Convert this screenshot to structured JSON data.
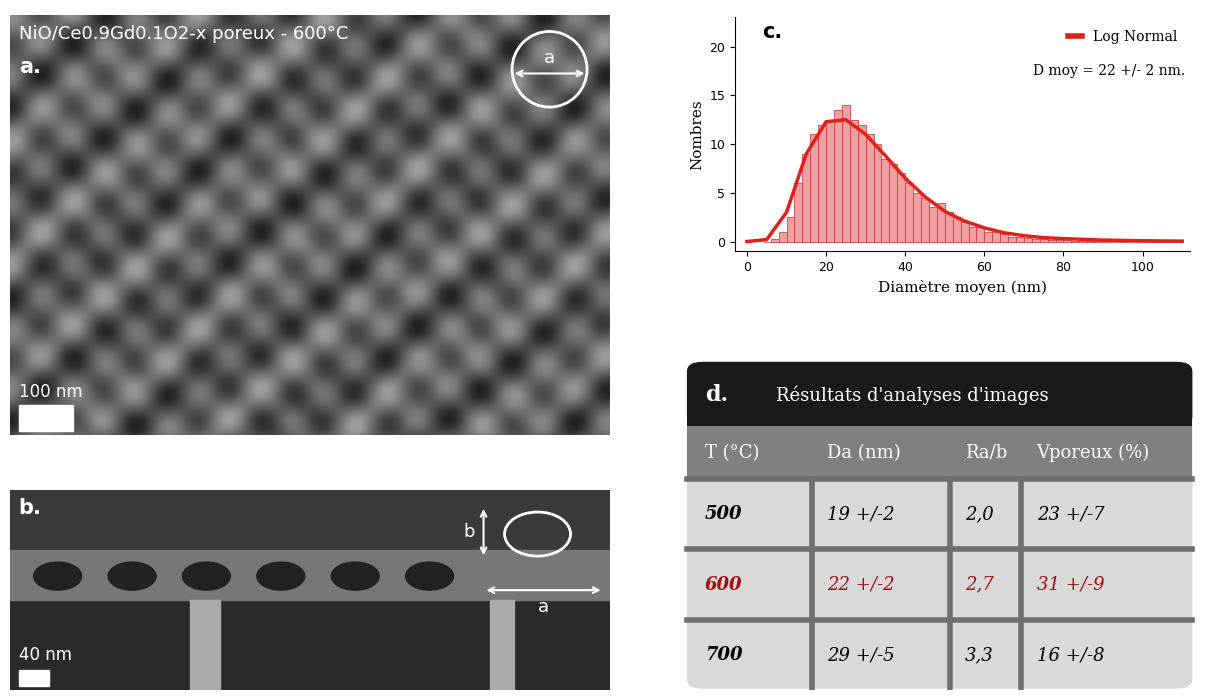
{
  "image_a": {
    "label": "a.",
    "title": "NiO/Ce0.9Gd0.1O2-x poreux - 600°C",
    "marker_label": "a",
    "scale_bar": "100 nm"
  },
  "image_b": {
    "label": "b.",
    "marker_labels": [
      "a",
      "b"
    ],
    "scale_bar": "40 nm"
  },
  "chart_data": {
    "type": "histogram",
    "label": "c.",
    "x_label": "Diamètre moyen (nm)",
    "y_label": "Nombres",
    "bins": [
      4,
      6,
      8,
      10,
      12,
      14,
      16,
      18,
      20,
      22,
      24,
      26,
      28,
      30,
      32,
      34,
      36,
      38,
      40,
      42,
      44,
      46,
      48,
      50,
      52,
      54,
      56,
      58,
      60,
      62,
      64,
      66,
      68,
      70,
      72,
      74,
      76,
      78,
      80,
      82,
      84,
      86,
      88,
      90,
      92,
      94,
      96,
      98,
      100,
      102,
      104,
      106,
      108,
      110
    ],
    "counts": [
      0,
      0.3,
      1,
      2.5,
      6,
      9,
      11,
      12,
      12.5,
      13.5,
      14,
      12.5,
      12,
      11,
      10,
      8.5,
      8,
      7,
      6,
      5,
      4.5,
      3.5,
      4,
      3,
      2.5,
      2,
      1.5,
      1.5,
      1,
      1,
      0.8,
      0.5,
      0.5,
      0.4,
      0.3,
      0.3,
      0.2,
      0.2,
      0.2,
      0.1,
      0.1,
      0.1,
      0.1,
      0.1,
      0,
      0.1,
      0,
      0,
      0,
      0,
      0.1,
      0,
      0
    ],
    "color": "#f0a0a0",
    "series": [
      {
        "name": "Log Normal",
        "type": "line",
        "color": "#e0201b",
        "x": [
          0,
          5,
          10,
          15,
          20,
          25,
          30,
          35,
          40,
          45,
          50,
          55,
          60,
          65,
          70,
          75,
          80,
          90,
          100,
          110
        ],
        "values": [
          0,
          0.2,
          3,
          9,
          12.3,
          12.5,
          11,
          8.8,
          6.5,
          4.6,
          3.1,
          2.1,
          1.4,
          0.9,
          0.6,
          0.4,
          0.3,
          0.15,
          0.08,
          0.04
        ]
      }
    ],
    "annotation": "D moy = 22 +/- 2 nm.",
    "legend": "upper right",
    "xlim": [
      -3,
      112
    ],
    "xticks": [
      0,
      20,
      40,
      60,
      80,
      100
    ],
    "ylim": [
      -1,
      23
    ],
    "yticks": [
      0,
      5,
      10,
      15,
      20
    ]
  },
  "table": {
    "label": "d.",
    "title": "Résultats d'analyses d'images",
    "header": [
      "T (°C)",
      "Da (nm)",
      "Ra/b",
      "Vporeux (%)"
    ],
    "rows": [
      [
        "500",
        "19 +/-2",
        "2,0",
        "23 +/-7"
      ],
      [
        "600",
        "22 +/-2",
        "2,7",
        "31 +/-9"
      ],
      [
        "700",
        "29 +/-5",
        "3,3",
        "16 +/-8"
      ]
    ],
    "row_colors": [
      "#000000",
      "#a01010",
      "#000000"
    ]
  }
}
